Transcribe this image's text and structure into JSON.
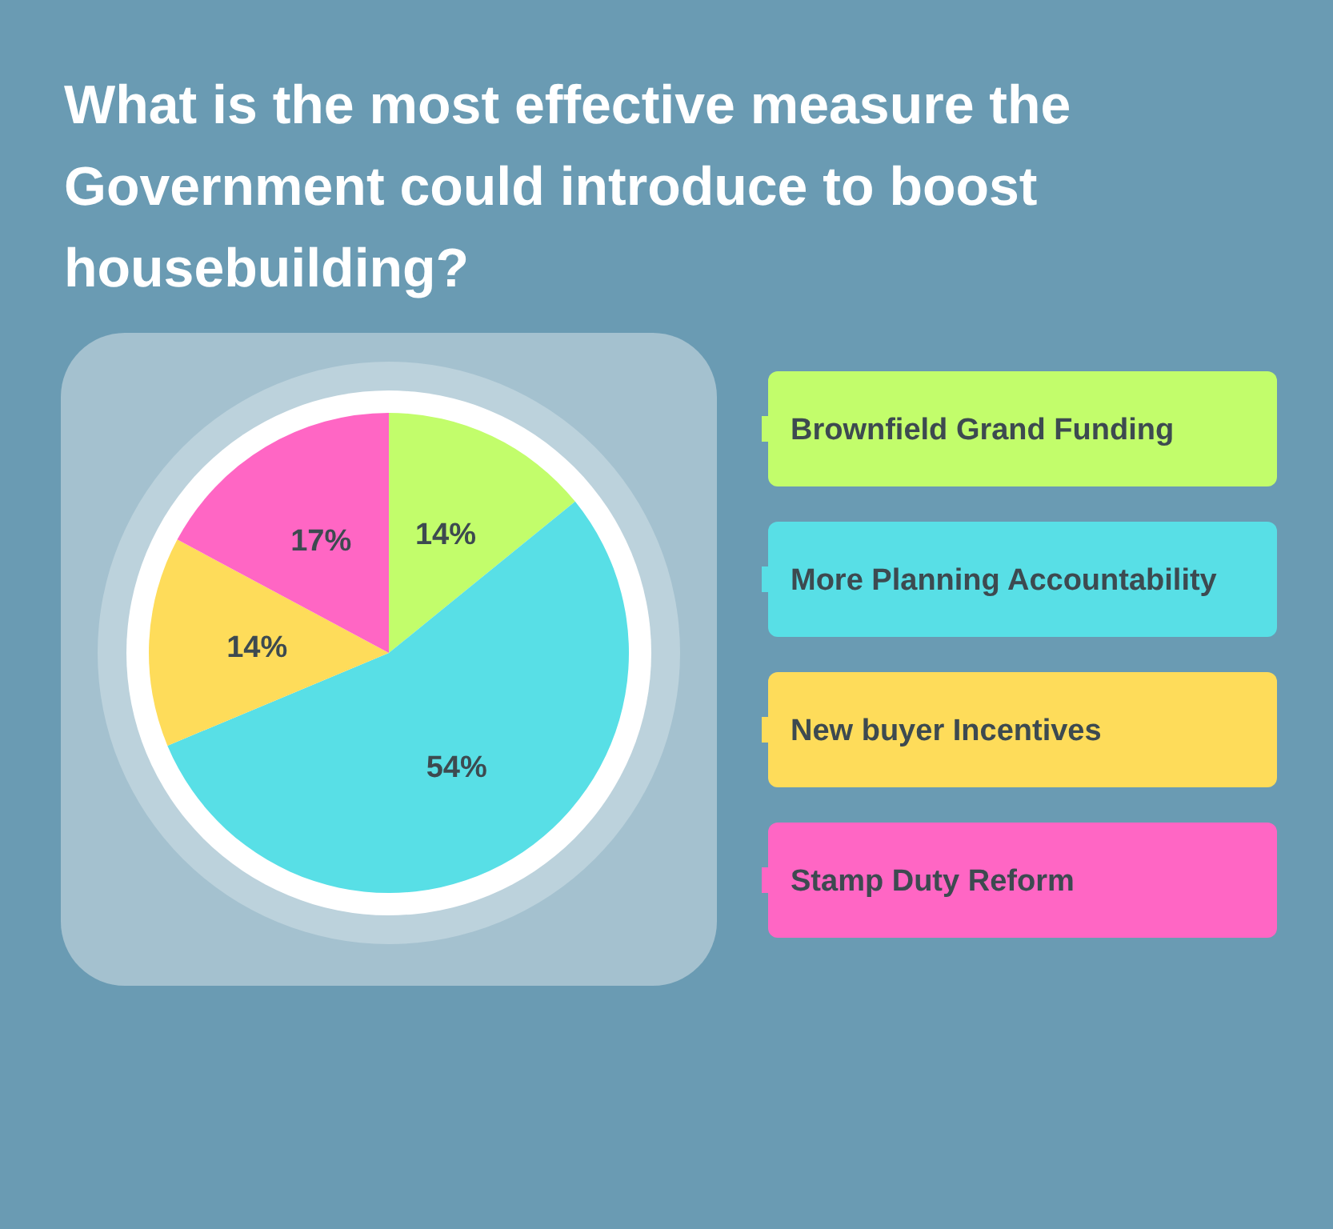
{
  "chart_data": {
    "type": "pie",
    "title": "What is the most effective measure the Government could introduce to boost housebuilding?",
    "categories": [
      "Brownfield Grand Funding",
      "More Planning Accountability",
      "New buyer Incentives",
      "Stamp Duty Reform"
    ],
    "values": [
      14,
      54,
      14,
      17
    ],
    "colors": [
      "#c2fd6b",
      "#58dfe6",
      "#fedc5a",
      "#ff66c4"
    ],
    "value_labels": [
      "14%",
      "54%",
      "14%",
      "17%"
    ],
    "legend": "right"
  }
}
